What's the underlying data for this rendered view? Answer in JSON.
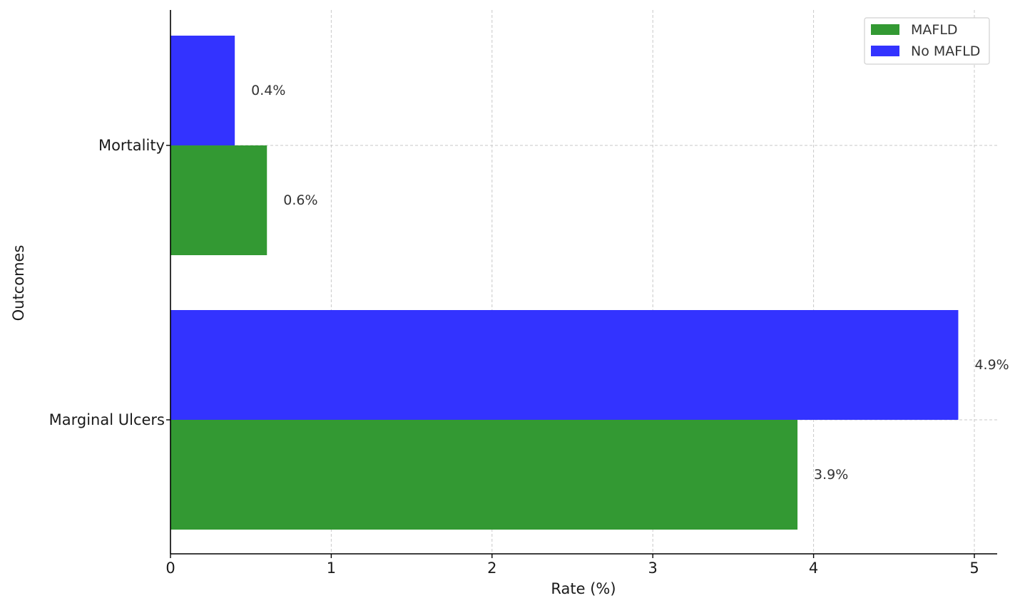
{
  "chart_data": {
    "type": "bar",
    "orientation": "horizontal",
    "categories": [
      "Mortality",
      "Marginal Ulcers"
    ],
    "series": [
      {
        "name": "MAFLD",
        "values": [
          0.6,
          3.9
        ],
        "color": "#339933",
        "labels": [
          "0.6%",
          "3.9%"
        ]
      },
      {
        "name": "No MAFLD",
        "values": [
          0.4,
          4.9
        ],
        "color": "#3333ff",
        "labels": [
          "0.4%",
          "4.9%"
        ]
      }
    ],
    "xlabel": "Rate (%)",
    "ylabel": "Outcomes",
    "xlim": [
      0,
      5.15
    ],
    "xticks": [
      "0",
      "1",
      "2",
      "3",
      "4",
      "5"
    ],
    "grid": true,
    "legend_position": "top-right"
  }
}
